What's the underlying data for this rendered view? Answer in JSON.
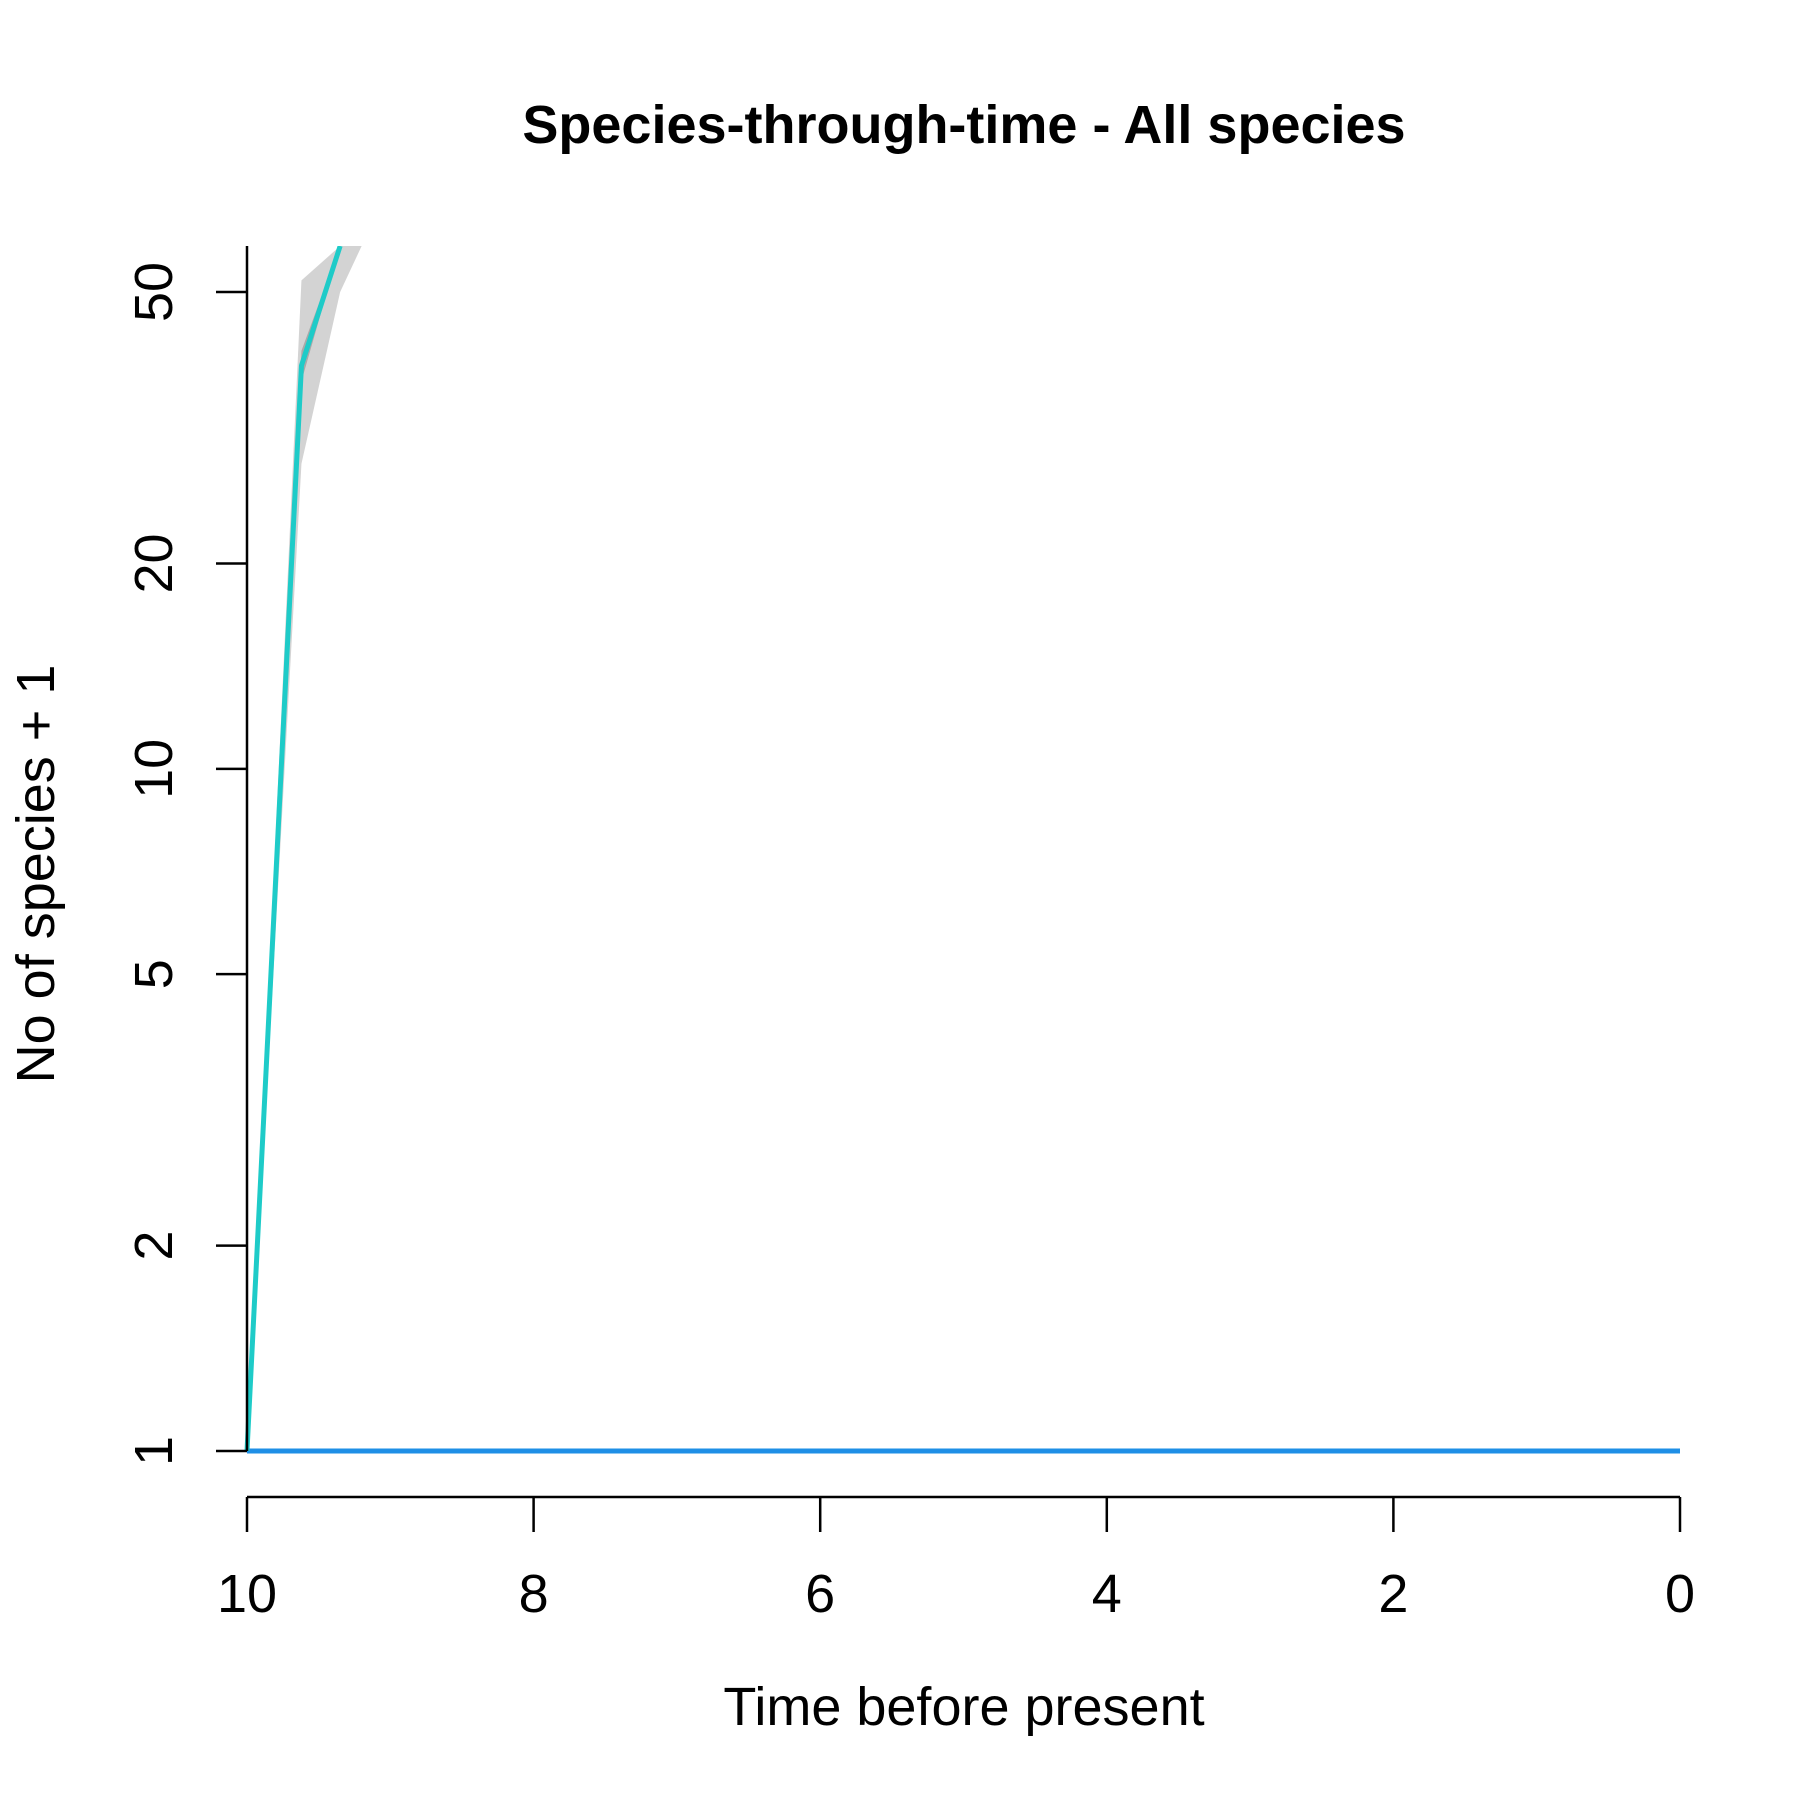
{
  "chart_data": {
    "type": "line",
    "title": "Species-through-time - All species",
    "xlabel": "Time before present",
    "ylabel": "No of species + 1",
    "x_reversed": true,
    "y_scale": "log",
    "xlim": [
      10,
      0
    ],
    "ylim": [
      0.85,
      62
    ],
    "x_ticks": [
      "10",
      "8",
      "6",
      "4",
      "2",
      "0"
    ],
    "y_ticks": [
      "1",
      "2",
      "5",
      "10",
      "20",
      "50"
    ],
    "grid": false,
    "legend": "none",
    "series": [
      {
        "style": "line",
        "color": "#1e8fe6",
        "x": [
          10,
          0
        ],
        "y": [
          1,
          1
        ]
      },
      {
        "style": "line",
        "color": "#1ecbc8",
        "x": [
          10,
          9.62,
          9.35
        ],
        "y": [
          1,
          39,
          62
        ]
      }
    ],
    "bands": [
      {
        "style": "band",
        "color": "#d3d3d3",
        "x": [
          10,
          9.62,
          9.35,
          9.2
        ],
        "y_low": [
          1,
          28,
          50,
          62
        ],
        "y_high": [
          1,
          52,
          62,
          62
        ]
      },
      {
        "style": "band",
        "color": "#a9a9a9",
        "x": [
          10,
          9.62,
          9.35
        ],
        "y_low": [
          1,
          37,
          62
        ],
        "y_high": [
          1,
          41,
          62
        ]
      }
    ]
  }
}
